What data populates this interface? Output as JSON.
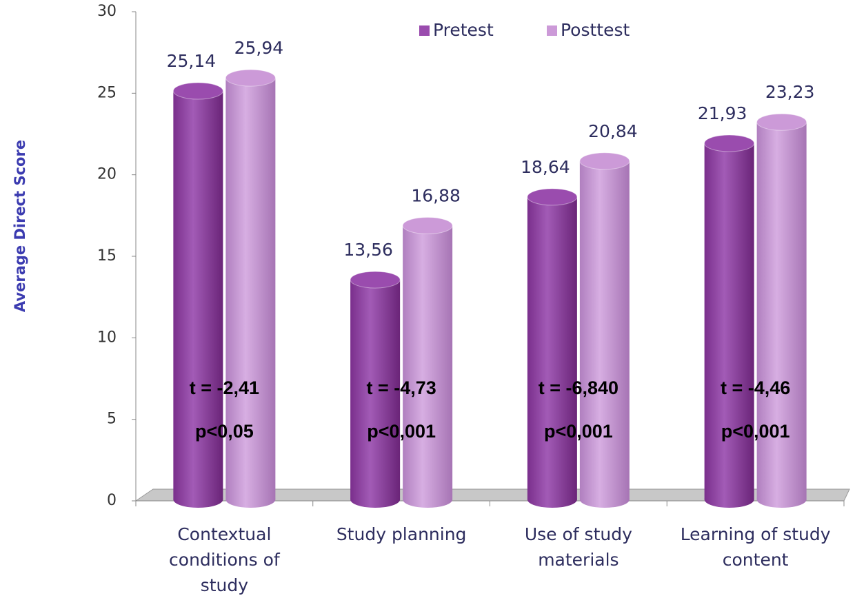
{
  "chart_data": {
    "type": "bar",
    "y_label": "Average Direct Score",
    "categories": [
      "Contextual conditions of study",
      "Study planning",
      "Use of study materials",
      "Learning of study content"
    ],
    "series": [
      {
        "name": "Pretest",
        "color": "#9a4cae",
        "values": [
          25.14,
          13.56,
          18.64,
          21.93
        ],
        "value_labels": [
          "25,14",
          "13,56",
          "18,64",
          "21,93"
        ]
      },
      {
        "name": "Posttest",
        "color": "#cc9ad8",
        "values": [
          25.94,
          16.88,
          20.84,
          23.23
        ],
        "value_labels": [
          "25,94",
          "16,88",
          "20,84",
          "23,23"
        ]
      }
    ],
    "annotations": [
      {
        "t": "t = -2,41",
        "p": "p<0,05"
      },
      {
        "t": "t = -4,73",
        "p": "p<0,001"
      },
      {
        "t": "t = -6,840",
        "p": "p<0,001"
      },
      {
        "t": "t = -4,46",
        "p": "p<0,001"
      }
    ],
    "ylim": [
      0,
      30
    ],
    "yticks": [
      0,
      5,
      10,
      15,
      20,
      25,
      30
    ],
    "legend": "top"
  }
}
